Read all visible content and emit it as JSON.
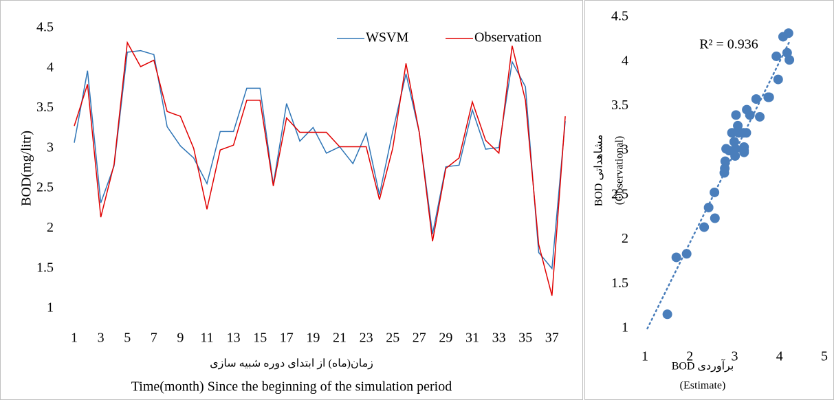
{
  "chart_data": [
    {
      "type": "line",
      "x_title": [
        "زمان(ماه) از ابتدای دوره شبیه سازی",
        "Time(month) Since the beginning of the simulation period"
      ],
      "y_title": "BOD(mg/litr)",
      "categories": [
        "1",
        null,
        "3",
        null,
        "5",
        null,
        "7",
        null,
        "9",
        null,
        "11",
        null,
        "13",
        null,
        "15",
        null,
        "17",
        null,
        "19",
        null,
        "21",
        null,
        "23",
        null,
        "25",
        null,
        "27",
        null,
        "29",
        null,
        "31",
        null,
        "33",
        null,
        "35",
        null,
        "37",
        null
      ],
      "series": [
        {
          "name": "WSVM",
          "color": "#2e75b6",
          "values": [
            3.07,
            3.97,
            2.32,
            2.78,
            4.2,
            4.22,
            4.17,
            3.27,
            3.03,
            2.88,
            2.56,
            3.21,
            3.21,
            3.75,
            3.75,
            2.55,
            3.56,
            3.09,
            3.26,
            2.94,
            3.02,
            2.81,
            3.19,
            2.42,
            3.21,
            3.93,
            3.2,
            1.93,
            2.77,
            2.79,
            3.48,
            2.99,
            3.01,
            4.08,
            3.77,
            1.7,
            1.5,
            3.34
          ]
        },
        {
          "name": "Observation",
          "color": "#e00000",
          "values": [
            3.28,
            3.8,
            2.14,
            2.8,
            4.32,
            4.02,
            4.1,
            3.46,
            3.4,
            3.0,
            2.24,
            2.98,
            3.04,
            3.6,
            3.6,
            2.53,
            3.38,
            3.2,
            3.2,
            3.2,
            3.02,
            3.02,
            3.02,
            2.36,
            3.0,
            4.06,
            3.2,
            1.84,
            2.75,
            2.88,
            3.58,
            3.1,
            2.94,
            4.28,
            3.6,
            1.8,
            1.16,
            3.4
          ]
        }
      ],
      "ylim": [
        1,
        4.5
      ],
      "yticks": [
        1,
        1.5,
        2,
        2.5,
        3,
        3.5,
        4,
        4.5
      ],
      "legend": "top-right"
    },
    {
      "type": "scatter",
      "annotation": "R² = 0.936",
      "x_title": [
        "BOD برآوردی",
        "(Estimate)"
      ],
      "y_title": [
        "BOD مشاهداتی",
        "(Observational)"
      ],
      "color": "#4a7ebb",
      "trendline": "linear",
      "x": [
        3.07,
        3.97,
        2.32,
        2.78,
        4.2,
        4.22,
        4.17,
        3.27,
        3.03,
        2.88,
        2.56,
        3.21,
        3.21,
        3.75,
        3.75,
        2.55,
        3.56,
        3.09,
        3.26,
        2.94,
        3.02,
        2.81,
        3.19,
        2.42,
        3.21,
        3.93,
        3.2,
        1.93,
        2.77,
        2.79,
        3.48,
        2.99,
        3.01,
        4.08,
        3.77,
        1.7,
        1.5,
        3.34
      ],
      "values": [
        3.28,
        3.8,
        2.14,
        2.8,
        4.32,
        4.02,
        4.1,
        3.46,
        3.4,
        3.0,
        2.24,
        2.98,
        3.04,
        3.6,
        3.6,
        2.53,
        3.38,
        3.2,
        3.2,
        3.2,
        3.02,
        3.02,
        3.02,
        2.36,
        3.0,
        4.06,
        3.2,
        1.84,
        2.75,
        2.88,
        3.58,
        3.1,
        2.94,
        4.28,
        3.6,
        1.8,
        1.16,
        3.4
      ],
      "xlim": [
        1,
        5
      ],
      "xticks": [
        1,
        2,
        3,
        4,
        5
      ],
      "ylim": [
        1,
        4.5
      ],
      "yticks": [
        1,
        1.5,
        2,
        2.5,
        3,
        3.5,
        4,
        4.5
      ]
    }
  ]
}
